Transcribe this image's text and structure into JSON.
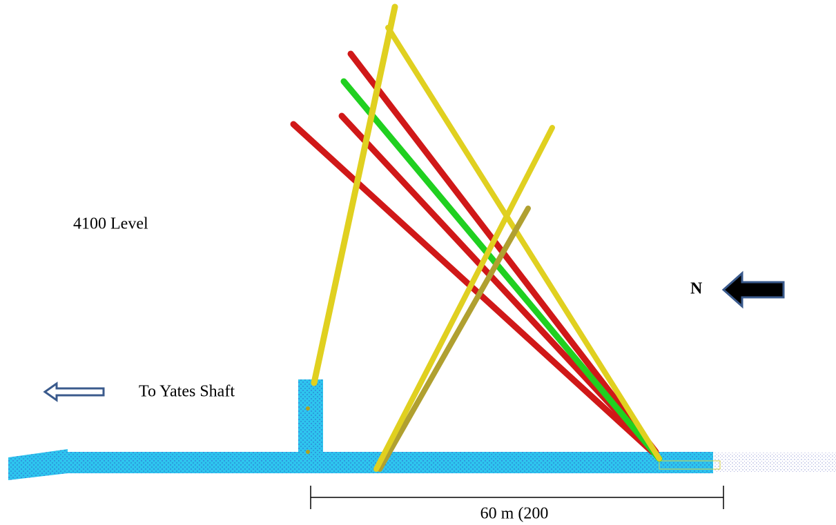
{
  "labels": {
    "level": "4100 Level",
    "north": "N",
    "shaft": "To Yates Shaft",
    "scale": "60 m (200"
  }
}
